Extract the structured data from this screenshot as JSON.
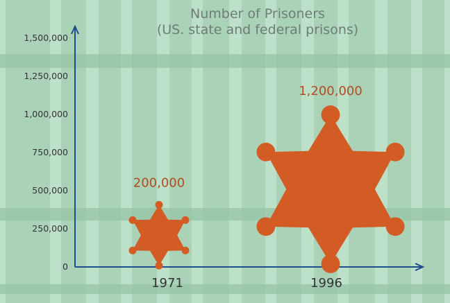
{
  "chart_data": {
    "type": "pictograph",
    "title": "Number of Prisoners",
    "subtitle": "(US. state and federal prisons)",
    "xlabel": "",
    "ylabel": "",
    "categories": [
      "1971",
      "1996"
    ],
    "values": [
      200000,
      1200000
    ],
    "data_labels": [
      "200,000",
      "1,200,000"
    ],
    "ylim": [
      0,
      1500000
    ],
    "yticks": [
      0,
      250000,
      500000,
      750000,
      1000000,
      1250000,
      1500000
    ],
    "ytick_labels": [
      "0",
      "250,000",
      "500,000",
      "750,000",
      "1,000,000",
      "1,250,000",
      "1,500,000"
    ],
    "marker_icon": "sheriff-star-icon",
    "background_motif": "prison-bars",
    "grid": false,
    "legend": "none"
  },
  "colors": {
    "background": "#a9d2b6",
    "bars_light": "#bde0c8",
    "bars_dark": "#98c4a6",
    "axis": "#1d4c8c",
    "marker": "#d35c24",
    "data_label": "#b24a22",
    "title": "#6e7d74",
    "tick_text": "#333333"
  }
}
